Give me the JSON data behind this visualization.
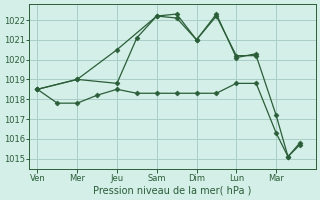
{
  "background_color": "#d4eee8",
  "grid_color": "#aacfc8",
  "line_color": "#2a5e38",
  "x_labels": [
    "Ven",
    "Mer",
    "Jeu",
    "Sam",
    "Dim",
    "Lun",
    "Mar"
  ],
  "series": [
    {
      "x": [
        0,
        1,
        2,
        3,
        3.5,
        4,
        4.5,
        5,
        5.5
      ],
      "y": [
        1018.5,
        1019.0,
        1020.5,
        1022.2,
        1022.3,
        1021.0,
        1022.3,
        1020.1,
        1020.3
      ],
      "style": "-",
      "marker": "D",
      "markersize": 2.5
    },
    {
      "x": [
        0,
        1,
        2,
        2.5,
        3,
        3.5,
        4,
        4.5,
        5,
        5.5,
        6,
        6.3,
        6.6
      ],
      "y": [
        1018.5,
        1019.0,
        1018.8,
        1021.1,
        1022.2,
        1022.1,
        1021.0,
        1022.2,
        1020.2,
        1020.2,
        1017.2,
        1015.1,
        1015.8
      ],
      "style": "-",
      "marker": "D",
      "markersize": 2.5
    },
    {
      "x": [
        0,
        0.5,
        1,
        1.5,
        2,
        2.5,
        3,
        3.5,
        4,
        4.5,
        5,
        5.5,
        6,
        6.3,
        6.6
      ],
      "y": [
        1018.5,
        1017.8,
        1017.8,
        1018.2,
        1018.5,
        1018.3,
        1018.3,
        1018.3,
        1018.3,
        1018.3,
        1018.8,
        1018.8,
        1016.3,
        1015.1,
        1015.7
      ],
      "style": "-",
      "marker": "D",
      "markersize": 2.5
    }
  ],
  "xlabel": "Pression niveau de la mer( hPa )",
  "ylim": [
    1014.5,
    1022.8
  ],
  "yticks": [
    1015,
    1016,
    1017,
    1018,
    1019,
    1020,
    1021,
    1022
  ],
  "xtick_positions": [
    0,
    1,
    2,
    3,
    4,
    5,
    6
  ],
  "xlim": [
    -0.2,
    7.0
  ],
  "figsize": [
    3.2,
    2.0
  ],
  "dpi": 100,
  "tick_fontsize": 6,
  "xlabel_fontsize": 7
}
